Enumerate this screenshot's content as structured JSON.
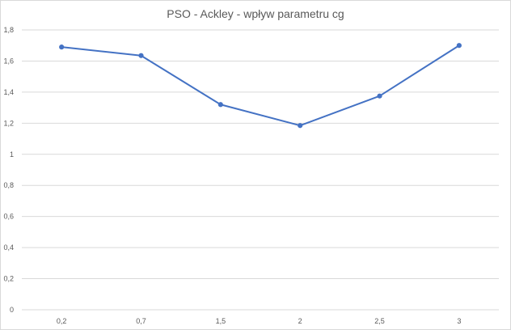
{
  "chart_data": {
    "type": "line",
    "title": "PSO - Ackley - wpływ parametru cg",
    "xlabel": "",
    "ylabel": "",
    "categories": [
      "0,2",
      "0,7",
      "1,5",
      "2",
      "2,5",
      "3"
    ],
    "series": [
      {
        "values": [
          1.69,
          1.635,
          1.32,
          1.185,
          1.375,
          1.7
        ]
      }
    ],
    "ylim": [
      0,
      1.8
    ],
    "yticks": [
      0,
      0.2,
      0.4,
      0.6,
      0.8,
      1,
      1.2,
      1.4,
      1.6,
      1.8
    ],
    "ytick_labels": [
      "0",
      "0,2",
      "0,4",
      "0,6",
      "0,8",
      "1",
      "1,2",
      "1,4",
      "1,6",
      "1,8"
    ],
    "grid": true,
    "legend": "none",
    "colors": {
      "line": "#4472c4",
      "grid": "#d9d9d9",
      "text": "#595959"
    }
  }
}
